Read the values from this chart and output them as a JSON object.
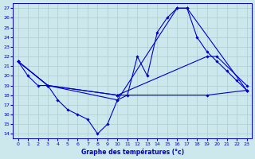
{
  "xlabel": "Graphe des températures (°c)",
  "bg_color": "#cce8ec",
  "line_color": "#0000cc",
  "grid_color": "#aacccc",
  "xlim": [
    -0.5,
    23.5
  ],
  "ylim": [
    13.5,
    27.5
  ],
  "yticks": [
    14,
    15,
    16,
    17,
    18,
    19,
    20,
    21,
    22,
    23,
    24,
    25,
    26,
    27
  ],
  "xticks": [
    0,
    1,
    2,
    3,
    4,
    5,
    6,
    7,
    8,
    9,
    10,
    11,
    12,
    13,
    14,
    15,
    16,
    17,
    18,
    19,
    20,
    21,
    22,
    23
  ],
  "series": [
    {
      "x": [
        0,
        1,
        2,
        3,
        4,
        5,
        6,
        7,
        8,
        9,
        10,
        11,
        12,
        13,
        14,
        15,
        16,
        17,
        18,
        19,
        20,
        21,
        22,
        23
      ],
      "y": [
        21.5,
        20.0,
        19.0,
        19.0,
        17.5,
        16.5,
        16.0,
        15.5,
        14.0,
        15.0,
        17.5,
        18.0,
        22.0,
        20.0,
        24.5,
        26.0,
        27.0,
        27.0,
        24.0,
        22.5,
        21.5,
        20.5,
        19.5,
        18.5
      ]
    },
    {
      "x": [
        0,
        3,
        10,
        16,
        17,
        23
      ],
      "y": [
        21.5,
        19.0,
        17.5,
        27.0,
        27.0,
        18.5
      ]
    },
    {
      "x": [
        0,
        3,
        10,
        19,
        20,
        23
      ],
      "y": [
        21.5,
        19.0,
        18.0,
        22.0,
        22.0,
        19.0
      ]
    },
    {
      "x": [
        0,
        3,
        10,
        19,
        23
      ],
      "y": [
        21.5,
        19.0,
        18.0,
        18.0,
        18.5
      ]
    }
  ]
}
